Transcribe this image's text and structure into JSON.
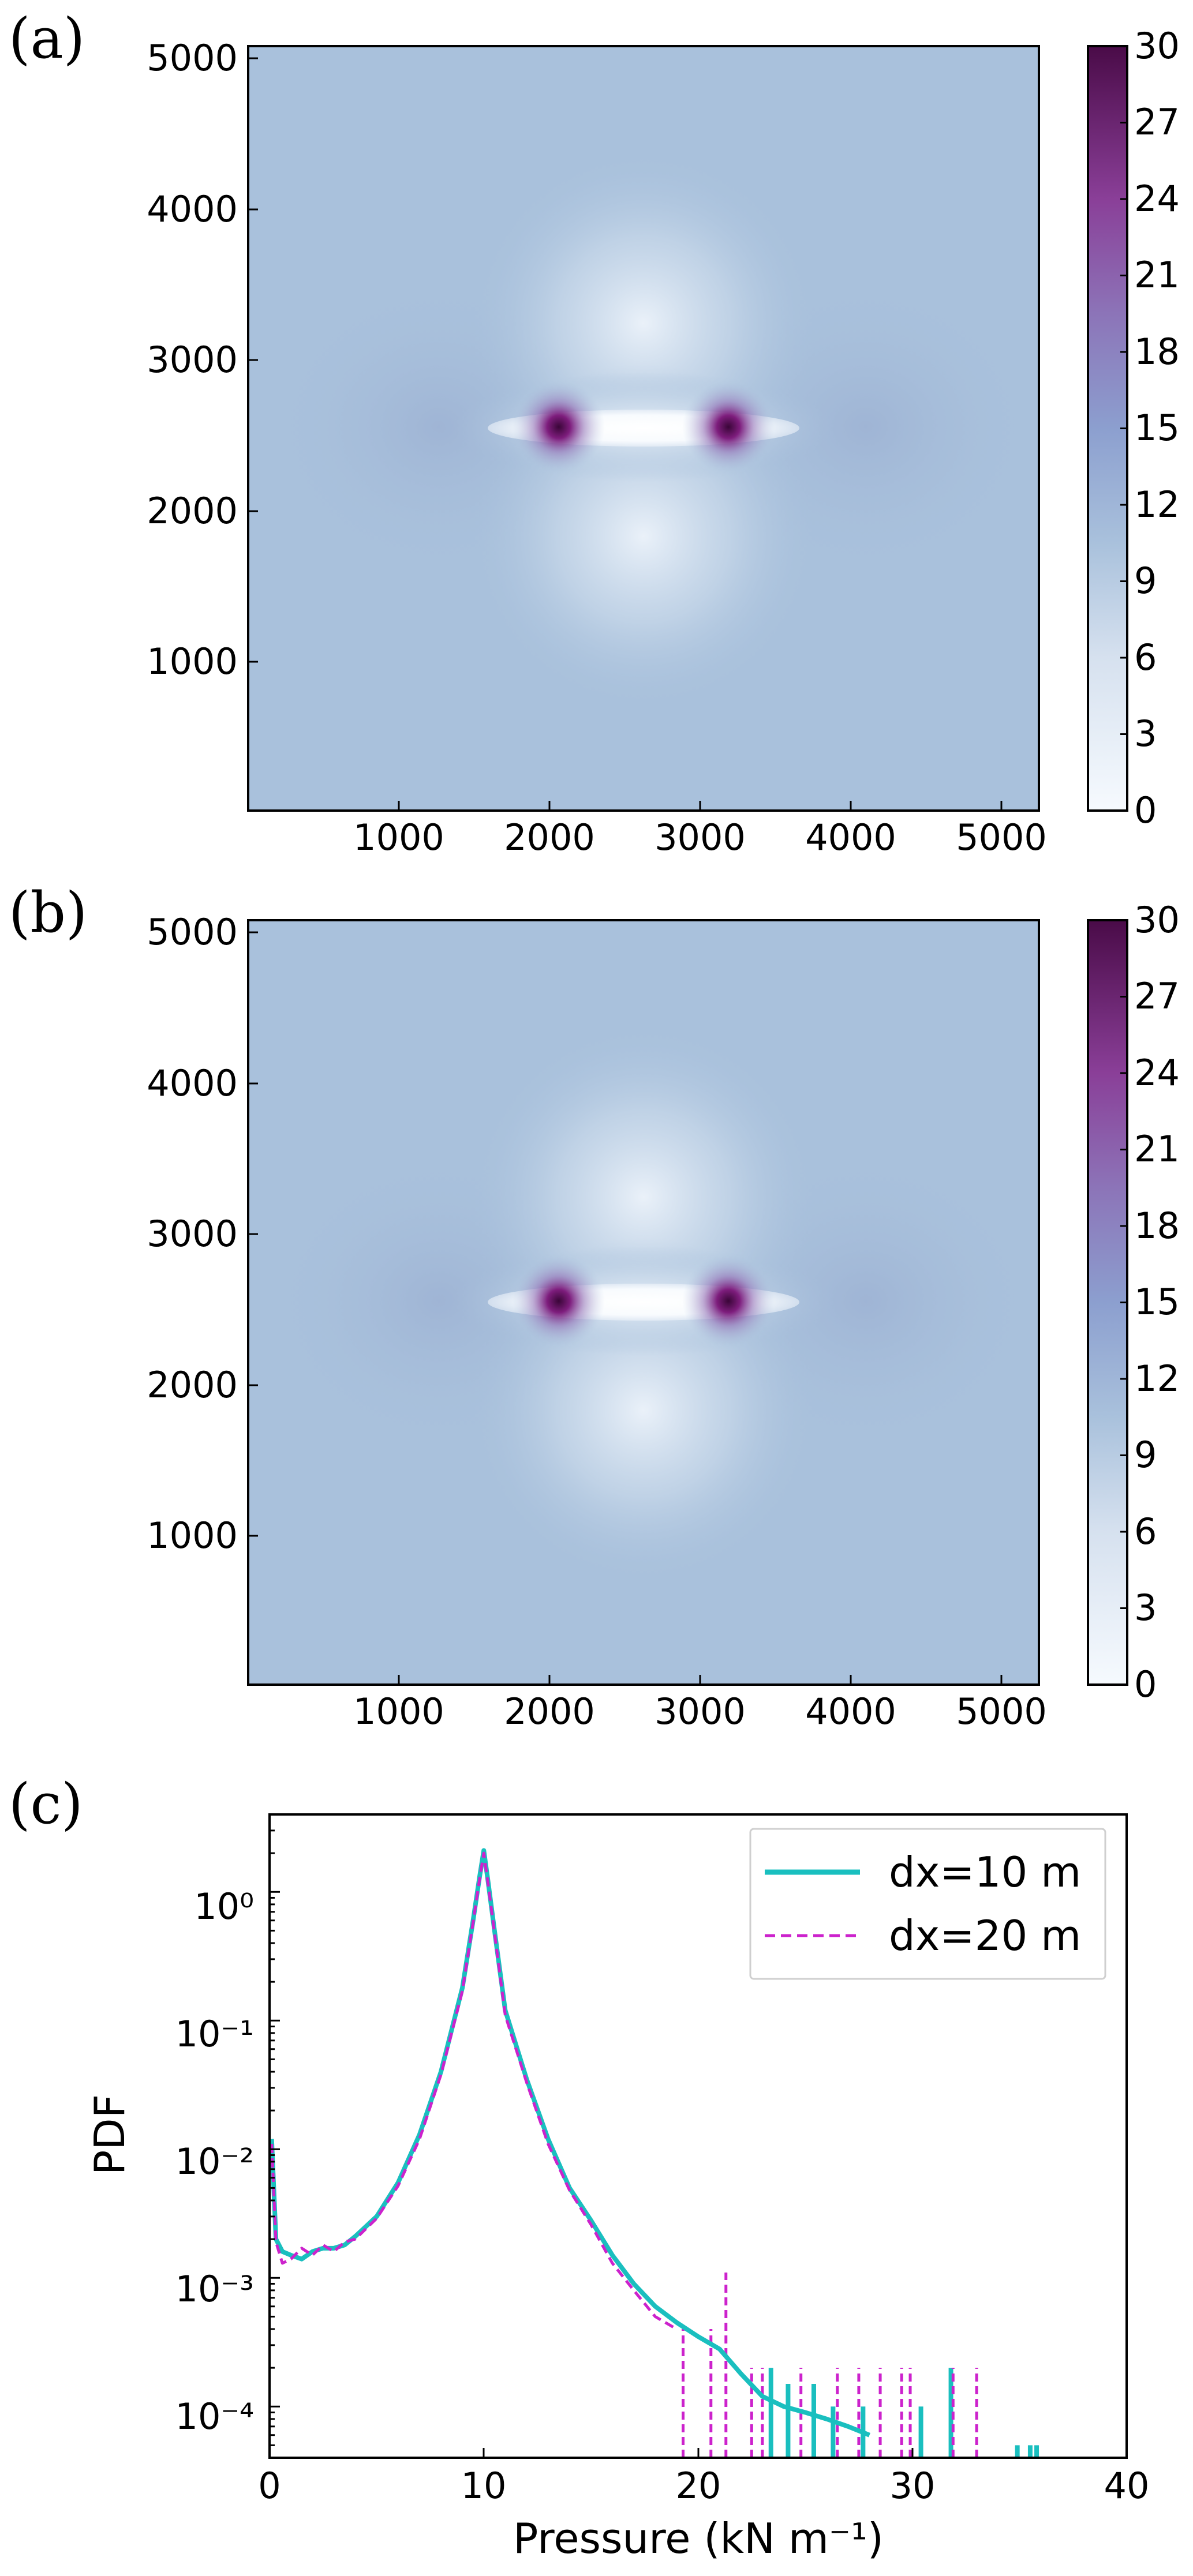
{
  "figure": {
    "panels": [
      {
        "label": "(a)",
        "type": "heatmap",
        "colorbar_ticks": [
          "0",
          "3",
          "6",
          "9",
          "12",
          "15",
          "18",
          "21",
          "24",
          "27",
          "30"
        ],
        "x_ticks": [
          "1000",
          "2000",
          "3000",
          "4000",
          "5000"
        ],
        "y_ticks": [
          "1000",
          "2000",
          "3000",
          "4000",
          "5000"
        ]
      },
      {
        "label": "(b)",
        "type": "heatmap",
        "colorbar_ticks": [
          "0",
          "3",
          "6",
          "9",
          "12",
          "15",
          "18",
          "21",
          "24",
          "27",
          "30"
        ],
        "x_ticks": [
          "1000",
          "2000",
          "3000",
          "4000",
          "5000"
        ],
        "y_ticks": [
          "1000",
          "2000",
          "3000",
          "4000",
          "5000"
        ]
      },
      {
        "label": "(c)",
        "type": "line",
        "xlabel": "Pressure (kN m⁻¹)",
        "ylabel": "PDF",
        "x_ticks": [
          "0",
          "10",
          "20",
          "30",
          "40"
        ],
        "y_ticks": [
          "10⁰",
          "10⁻¹",
          "10⁻²",
          "10⁻³",
          "10⁻⁴"
        ],
        "legend": [
          "dx=10 m",
          "dx=20 m"
        ]
      }
    ]
  },
  "chart_data": [
    {
      "type": "heatmap",
      "panel": "(a)",
      "xlim": [
        0,
        5120
      ],
      "ylim": [
        0,
        5120
      ],
      "colorbar": {
        "min": 0,
        "max": 30,
        "ticks": [
          0,
          3,
          6,
          9,
          12,
          15,
          18,
          21,
          24,
          27,
          30
        ],
        "colormap": "white-blue-purple"
      },
      "background_value": 11,
      "feature": {
        "description": "horizontal crack",
        "x_start": 2050,
        "x_end": 3100,
        "y": 2600,
        "tip_value": 30,
        "crack_value": 0
      },
      "colors": {
        "background": "#a9c1dc",
        "low": "#f6fafe",
        "high": "#4a0b48"
      }
    },
    {
      "type": "heatmap",
      "panel": "(b)",
      "xlim": [
        0,
        5120
      ],
      "ylim": [
        0,
        5120
      ],
      "colorbar": {
        "min": 0,
        "max": 30,
        "ticks": [
          0,
          3,
          6,
          9,
          12,
          15,
          18,
          21,
          24,
          27,
          30
        ],
        "colormap": "white-blue-purple"
      },
      "background_value": 11,
      "feature": {
        "description": "horizontal crack",
        "x_start": 2050,
        "x_end": 3100,
        "y": 2600,
        "tip_value": 30,
        "crack_value": 0
      },
      "colors": {
        "background": "#a9c1dc",
        "low": "#f6fafe",
        "high": "#4a0b48"
      }
    },
    {
      "type": "line",
      "panel": "(c)",
      "xlim": [
        0,
        40
      ],
      "ylim": [
        4e-05,
        4
      ],
      "yscale": "log",
      "grid": false,
      "legend_position": "top-right",
      "series": [
        {
          "name": "dx=10 m",
          "color": "#1abfbf",
          "style": "solid",
          "x": [
            0.1,
            0.3,
            0.6,
            1.0,
            1.5,
            2.0,
            2.5,
            3.0,
            3.5,
            4.0,
            5.0,
            6.0,
            7.0,
            8.0,
            9.0,
            9.5,
            9.8,
            10.0,
            10.2,
            10.5,
            11.0,
            12.0,
            13.0,
            14.0,
            15.0,
            16.0,
            17.0,
            18.0,
            19.0,
            20.0,
            21.0,
            22.0,
            23.0,
            24.0,
            25.0,
            26.0,
            27.0,
            28.0
          ],
          "y": [
            0.012,
            0.002,
            0.0016,
            0.0015,
            0.0014,
            0.0016,
            0.0017,
            0.0017,
            0.0018,
            0.0021,
            0.003,
            0.0055,
            0.013,
            0.04,
            0.18,
            0.6,
            1.3,
            2.1,
            1.2,
            0.5,
            0.12,
            0.035,
            0.012,
            0.005,
            0.0028,
            0.0015,
            0.0009,
            0.0006,
            0.00045,
            0.00035,
            0.00028,
            0.00018,
            0.00012,
            0.0001,
            9e-05,
            8e-05,
            7e-05,
            6e-05
          ]
        },
        {
          "name": "dx=20 m",
          "color": "#cc22cc",
          "style": "dashed",
          "x": [
            0.1,
            0.3,
            0.6,
            1.0,
            1.5,
            2.0,
            2.5,
            3.0,
            3.5,
            4.0,
            5.0,
            6.0,
            7.0,
            8.0,
            9.0,
            9.5,
            9.8,
            10.0,
            10.2,
            10.5,
            11.0,
            12.0,
            13.0,
            14.0,
            15.0,
            16.0,
            17.0,
            18.0,
            19.0
          ],
          "y": [
            0.011,
            0.0019,
            0.0013,
            0.0014,
            0.0017,
            0.0015,
            0.0018,
            0.0016,
            0.0019,
            0.002,
            0.0029,
            0.0052,
            0.012,
            0.038,
            0.17,
            0.58,
            1.25,
            2.0,
            1.15,
            0.48,
            0.11,
            0.033,
            0.011,
            0.0048,
            0.0026,
            0.0013,
            0.0008,
            0.0005,
            0.0004
          ]
        }
      ],
      "spikes_dx10": {
        "x": [
          23.4,
          24.2,
          25.4,
          26.3,
          27.7,
          30.4,
          31.8,
          34.9,
          35.5,
          35.8
        ],
        "y": [
          0.0002,
          0.00015,
          0.00015,
          0.0001,
          0.0001,
          0.0001,
          0.0002,
          5e-05,
          5e-05,
          5e-05
        ]
      },
      "spikes_dx20": {
        "x": [
          19.3,
          20.6,
          21.3,
          22.5,
          23.0,
          24.8,
          26.5,
          27.5,
          28.5,
          29.5,
          29.9,
          31.9,
          33.0
        ],
        "y": [
          0.0004,
          0.0004,
          0.0011,
          0.0002,
          0.0002,
          0.0002,
          0.0002,
          0.0002,
          0.0002,
          0.0002,
          0.0002,
          0.0002,
          0.0002
        ]
      }
    }
  ]
}
